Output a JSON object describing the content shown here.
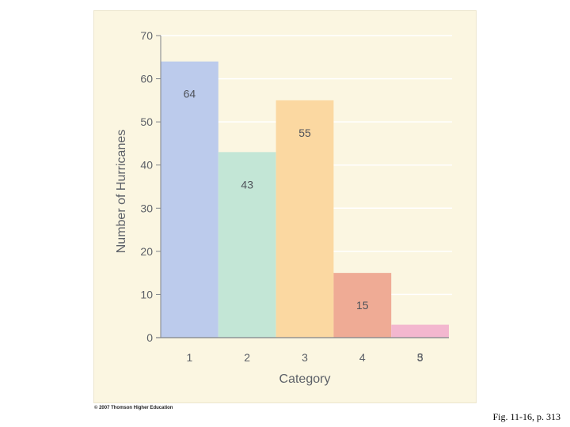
{
  "chart_data": {
    "type": "bar",
    "categories": [
      "1",
      "2",
      "3",
      "4",
      "5"
    ],
    "values": [
      64,
      43,
      55,
      15,
      3
    ],
    "data_labels": [
      "64",
      "43",
      "55",
      "15",
      "3"
    ],
    "colors": [
      "#bccbec",
      "#c3e6d6",
      "#fbd8a1",
      "#efab95",
      "#f3b7cf"
    ],
    "xlabel": "Category",
    "ylabel": "Number of Hurricanes",
    "ylim": [
      0,
      70
    ],
    "yticks": [
      0,
      10,
      20,
      30,
      40,
      50,
      60,
      70
    ],
    "grid": true
  },
  "footer": {
    "copyright": "© 2007 Thomson Higher Education",
    "caption": "Fig. 11-16, p. 313"
  }
}
